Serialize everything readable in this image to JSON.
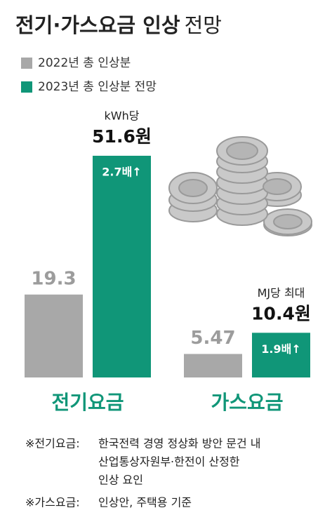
{
  "chart_data": {
    "type": "bar",
    "title": [
      "전기·가스요금 인상",
      "전망"
    ],
    "categories": [
      "전기요금",
      "가스요금"
    ],
    "series": [
      {
        "name": "2022년 총 인상분",
        "color": "#a8a8a8",
        "values": [
          19.3,
          5.47
        ]
      },
      {
        "name": "2023년 총 인상분 전망",
        "color": "#109678",
        "values": [
          51.6,
          10.4
        ],
        "value_labels": [
          "51.6원",
          "10.4원"
        ]
      }
    ],
    "unit_labels": [
      "kWh당",
      "MJ당 최대"
    ],
    "bar_annotations": [
      "2.7배↑",
      "1.9배↑"
    ],
    "notes": [
      {
        "label": "※전기요금:",
        "lines": [
          "한국전력 경영 정상화 방안 문건 내",
          "산업통상자원부·한전이 산정한",
          "인상 요인"
        ]
      },
      {
        "label": "※가스요금:",
        "lines": [
          "인상안, 주택용 기준"
        ]
      }
    ]
  }
}
